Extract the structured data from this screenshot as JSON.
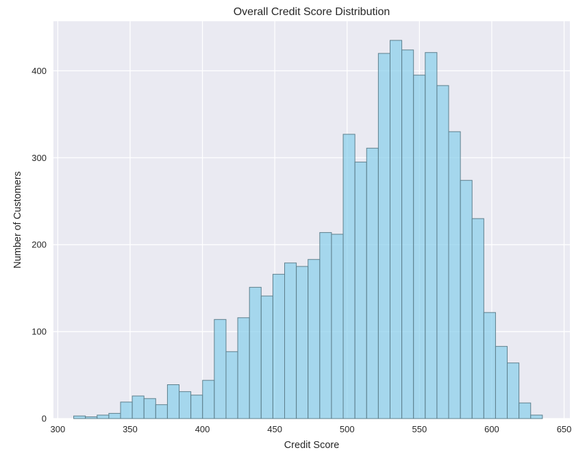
{
  "chart_data": {
    "type": "bar",
    "title": "Overall Credit Score Distribution",
    "xlabel": "Credit Score",
    "ylabel": "Number of Customers",
    "xlim": [
      297,
      654
    ],
    "ylim": [
      0,
      457
    ],
    "xticks": [
      300,
      350,
      400,
      450,
      500,
      550,
      600,
      650
    ],
    "yticks": [
      0,
      100,
      200,
      300,
      400
    ],
    "grid": true,
    "bin_edges": [
      311,
      319.1,
      327.2,
      335.3,
      343.4,
      351.5,
      359.6,
      367.7,
      375.8,
      383.9,
      392,
      400.1,
      408.2,
      416.3,
      424.4,
      432.5,
      440.6,
      448.7,
      456.8,
      464.9,
      473,
      481.1,
      489.2,
      497.3,
      505.4,
      513.5,
      521.6,
      529.7,
      537.8,
      545.9,
      554,
      562.1,
      570.2,
      578.3,
      586.4,
      594.5,
      602.6,
      610.7,
      618.8,
      626.9,
      635
    ],
    "values": [
      3,
      2,
      4,
      6,
      19,
      26,
      23,
      16,
      39,
      31,
      27,
      44,
      114,
      77,
      116,
      151,
      141,
      166,
      179,
      175,
      183,
      214,
      212,
      327,
      295,
      311,
      420,
      435,
      424,
      395,
      421,
      383,
      330,
      274,
      230,
      122,
      83,
      64,
      18,
      4
    ],
    "colors": {
      "bar_fill": "#87ceeb",
      "bar_stroke": "#5d7f8c",
      "plot_background": "#eaeaf2",
      "grid": "#ffffff",
      "text": "#262626"
    }
  }
}
